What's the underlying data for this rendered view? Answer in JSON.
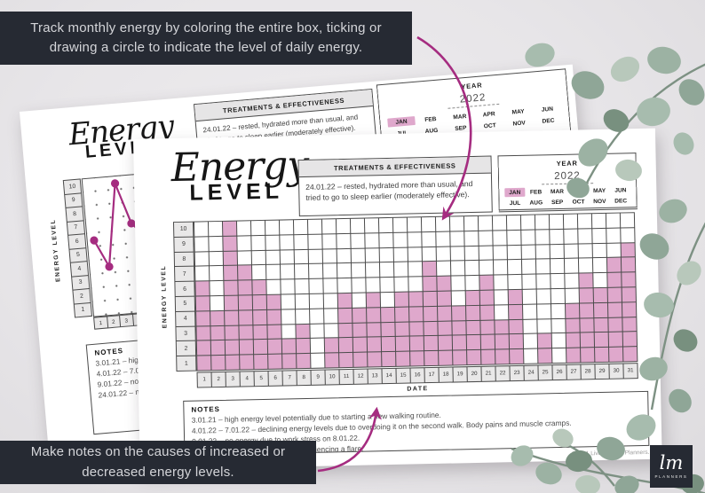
{
  "banners": {
    "top": {
      "lines": [
        "Track monthly energy by coloring the entire box, ticking or",
        "drawing a circle to indicate the level of daily energy."
      ]
    },
    "bottom": {
      "lines": [
        "Make notes on the causes of increased or",
        "decreased energy levels."
      ]
    }
  },
  "page": {
    "title_script": "Energy",
    "title_sub": "LEVEL",
    "treatments": {
      "header": "TREATMENTS & EFFECTIVENESS",
      "body": "24.01.22 – rested, hydrated more than usual, and tried to go to sleep earlier (moderately effective)."
    },
    "year_box": {
      "header": "YEAR",
      "year": "2022",
      "months": [
        "JAN",
        "FEB",
        "MAR",
        "APR",
        "MAY",
        "JUN",
        "JUL",
        "AUG",
        "SEP",
        "OCT",
        "NOV",
        "DEC"
      ],
      "selected_month": "JAN"
    },
    "y_axis_label": "ENERGY LEVEL",
    "x_axis_label": "DATE",
    "notes": {
      "header": "NOTES",
      "lines": [
        "3.01.21 – high energy level potentially due to starting a new walking routine.",
        "4.01.22 – 7.01.22 – declining energy levels due to overdoing it on the second walk. Body pains and muscle cramps.",
        "9.01.22 – no energy due to work stress on 8.01.22.",
        "24.01.22 – no energy, currently experiencing a flare."
      ]
    },
    "copyright": "©2021 Live Minimal Planners."
  },
  "chart_data": {
    "type": "bar",
    "title": "Energy Level — January 2022",
    "categories": [
      1,
      2,
      3,
      4,
      5,
      6,
      7,
      8,
      9,
      10,
      11,
      12,
      13,
      14,
      15,
      16,
      17,
      18,
      19,
      20,
      21,
      22,
      23,
      24,
      25,
      26,
      27,
      28,
      29,
      30,
      31
    ],
    "values": [
      6,
      4,
      10,
      7,
      6,
      5,
      2,
      3,
      0,
      2,
      5,
      4,
      5,
      4,
      5,
      5,
      7,
      6,
      4,
      5,
      6,
      3,
      5,
      0,
      2,
      0,
      4,
      6,
      5,
      7,
      8
    ],
    "xlabel": "DATE",
    "ylabel": "ENERGY LEVEL",
    "ylim": [
      0,
      10
    ],
    "y_ticks": [
      1,
      2,
      3,
      4,
      5,
      6,
      7,
      8,
      9,
      10
    ],
    "grid": true,
    "front_marker_style": "filled-box",
    "back_marker_style": "dot-line"
  },
  "logo": {
    "monogram": "lm",
    "label": "PLANNERS"
  },
  "colors": {
    "accent_magenta": "#a52c80",
    "fill_pink": "#dfa8cc",
    "banner_dark": "#262a33"
  }
}
